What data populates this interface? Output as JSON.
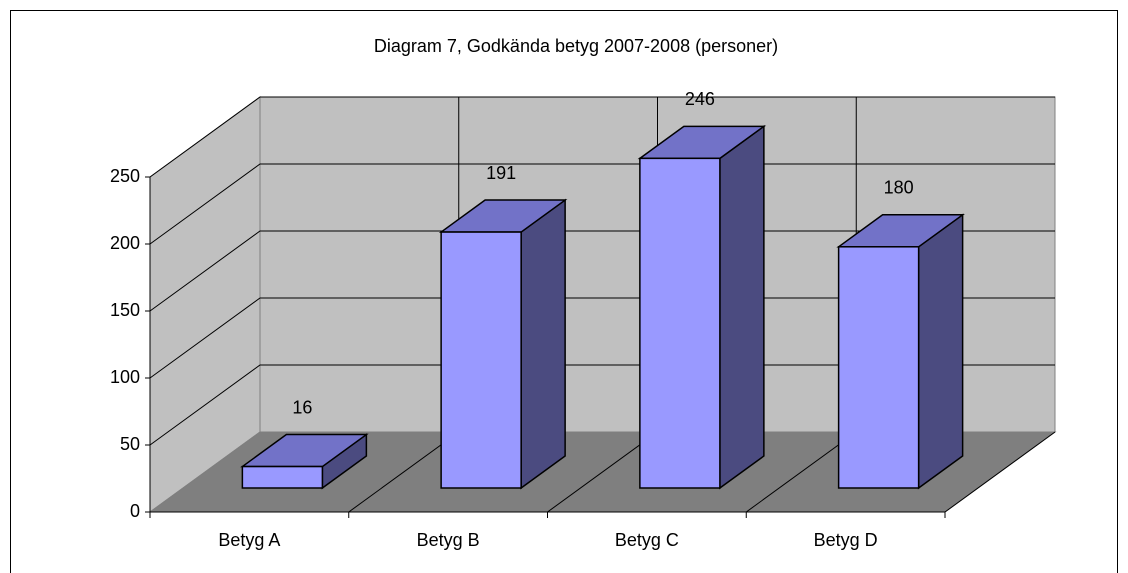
{
  "chart_data": {
    "type": "bar3d",
    "title": "Diagram 7, Godkända betyg 2007-2008 (personer)",
    "categories": [
      "Betyg A",
      "Betyg B",
      "Betyg C",
      "Betyg D"
    ],
    "values": [
      16,
      191,
      246,
      180
    ],
    "color": "#9999ff",
    "ylim": [
      0,
      250
    ],
    "yticks": [
      0,
      50,
      100,
      150,
      200,
      250
    ],
    "grid": true
  }
}
